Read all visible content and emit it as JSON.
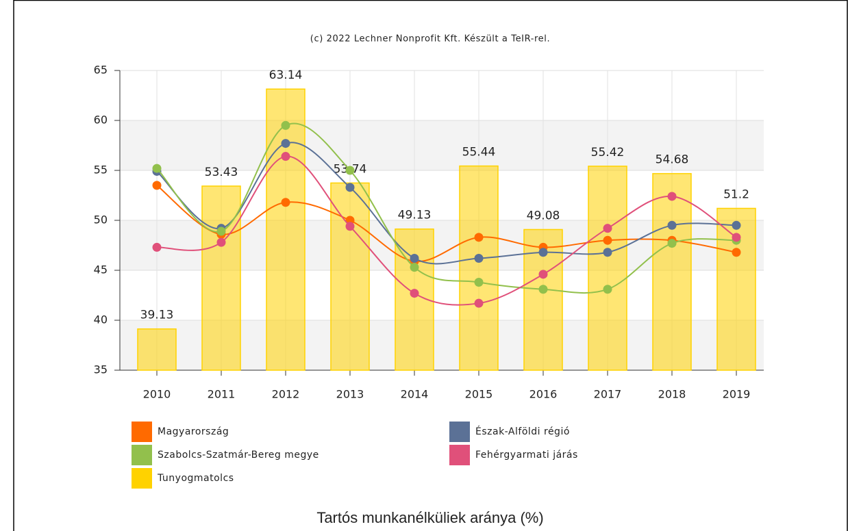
{
  "chart_data": {
    "type": "combo",
    "credit": "(c) 2022 Lechner Nonprofit Kft. Készült a TeIR-rel.",
    "title": "Tartós munkanélküliek aránya (%)",
    "categories": [
      "2010",
      "2011",
      "2012",
      "2013",
      "2014",
      "2015",
      "2016",
      "2017",
      "2018",
      "2019"
    ],
    "ylim": [
      35,
      65
    ],
    "yticks": [
      35,
      40,
      45,
      50,
      55,
      60,
      65
    ],
    "grid": true,
    "series": [
      {
        "name": "Magyarország",
        "color": "#ff6a00",
        "kind": "line",
        "values": [
          53.5,
          48.6,
          51.8,
          50.0,
          45.9,
          48.3,
          47.3,
          48.0,
          48.0,
          46.8
        ]
      },
      {
        "name": "Észak-Alföldi régió",
        "color": "#5b7196",
        "kind": "line",
        "values": [
          54.9,
          49.2,
          57.7,
          53.3,
          46.2,
          46.2,
          46.8,
          46.8,
          49.5,
          49.5
        ]
      },
      {
        "name": "Szabolcs-Szatmár-Bereg megye",
        "color": "#92c04c",
        "kind": "line",
        "values": [
          55.2,
          48.9,
          59.5,
          55.0,
          45.3,
          43.8,
          43.1,
          43.1,
          47.7,
          48.0
        ]
      },
      {
        "name": "Fehérgyarmati járás",
        "color": "#e0507a",
        "kind": "line",
        "values": [
          47.3,
          47.8,
          56.4,
          49.4,
          42.7,
          41.7,
          44.6,
          49.2,
          52.4,
          48.3
        ]
      },
      {
        "name": "Tunyogmatolcs",
        "color": "#ffd200",
        "kind": "bar",
        "values": [
          39.13,
          53.43,
          63.14,
          53.74,
          49.13,
          55.44,
          49.08,
          55.42,
          54.68,
          51.2
        ]
      }
    ]
  }
}
